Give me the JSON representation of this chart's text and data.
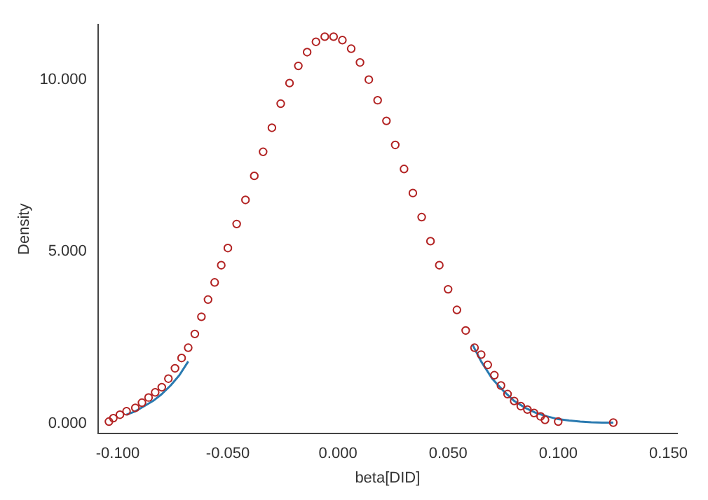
{
  "chart_data": {
    "type": "scatter",
    "xlabel": "beta[DID]",
    "ylabel": "Density",
    "xlim": [
      -0.109,
      0.154
    ],
    "ylim": [
      -0.3,
      11.6
    ],
    "xticks": [
      {
        "value": -0.1,
        "label": "-0.100"
      },
      {
        "value": -0.05,
        "label": "-0.050"
      },
      {
        "value": 0,
        "label": "0.000"
      },
      {
        "value": 0.05,
        "label": "0.050"
      },
      {
        "value": 0.1,
        "label": "0.100"
      },
      {
        "value": 0.15,
        "label": "0.150"
      }
    ],
    "yticks": [
      {
        "value": 0,
        "label": "0.000"
      },
      {
        "value": 5,
        "label": "5.000"
      },
      {
        "value": 10,
        "label": "10.000"
      }
    ],
    "grid": false,
    "legend": false,
    "series": [
      {
        "type": "line",
        "color": "#2a7ab0",
        "marker": "none",
        "line_style": "solid",
        "x": [
          -0.096,
          -0.092,
          -0.088,
          -0.084,
          -0.08,
          -0.076,
          -0.072,
          -0.068,
          -0.066,
          0.061,
          0.065,
          0.07,
          0.075,
          0.08,
          0.085,
          0.09,
          0.095,
          0.1,
          0.105,
          0.11,
          0.115,
          0.12,
          0.125
        ],
        "values": [
          0.25,
          0.35,
          0.5,
          0.65,
          0.85,
          1.1,
          1.4,
          1.8,
          null,
          2.3,
          1.8,
          1.3,
          0.95,
          0.65,
          0.45,
          0.3,
          0.2,
          0.12,
          0.08,
          0.05,
          0.03,
          0.02,
          0.02
        ]
      },
      {
        "type": "scatter",
        "color": "#b22222",
        "marker": "circle",
        "x": [
          -0.104,
          -0.102,
          -0.099,
          -0.096,
          -0.092,
          -0.089,
          -0.086,
          -0.083,
          -0.08,
          -0.077,
          -0.074,
          -0.071,
          -0.068,
          -0.065,
          -0.062,
          -0.059,
          -0.056,
          -0.053,
          -0.05,
          -0.046,
          -0.042,
          -0.038,
          -0.034,
          -0.03,
          -0.026,
          -0.022,
          -0.018,
          -0.014,
          -0.01,
          -0.006,
          -0.002,
          0.002,
          0.006,
          0.01,
          0.014,
          0.018,
          0.022,
          0.026,
          0.03,
          0.034,
          0.038,
          0.042,
          0.046,
          0.05,
          0.054,
          0.058,
          0.062,
          0.065,
          0.068,
          0.071,
          0.074,
          0.077,
          0.08,
          0.083,
          0.086,
          0.089,
          0.092,
          0.094,
          0.1,
          0.125
        ],
        "values": [
          0.05,
          0.15,
          0.25,
          0.35,
          0.45,
          0.6,
          0.75,
          0.9,
          1.05,
          1.3,
          1.6,
          1.9,
          2.2,
          2.6,
          3.1,
          3.6,
          4.1,
          4.6,
          5.1,
          5.8,
          6.5,
          7.2,
          7.9,
          8.6,
          9.3,
          9.9,
          10.4,
          10.8,
          11.1,
          11.25,
          11.25,
          11.15,
          10.9,
          10.5,
          10.0,
          9.4,
          8.8,
          8.1,
          7.4,
          6.7,
          6.0,
          5.3,
          4.6,
          3.9,
          3.3,
          2.7,
          2.2,
          2.0,
          1.7,
          1.4,
          1.1,
          0.85,
          0.65,
          0.5,
          0.4,
          0.3,
          0.2,
          0.1,
          0.05,
          0.02
        ]
      }
    ]
  }
}
